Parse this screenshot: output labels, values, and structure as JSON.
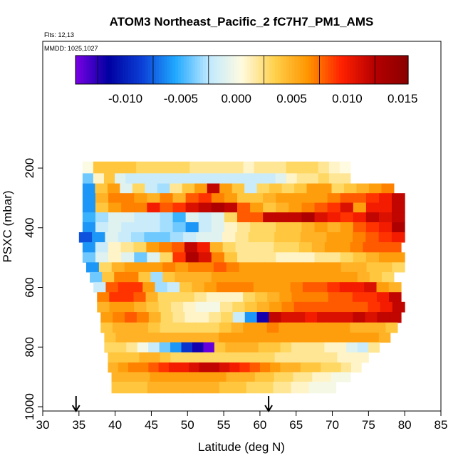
{
  "chart_data": {
    "type": "heatmap",
    "title": "ATOM3 Northeast_Pacific_2 fC7H7_PM1_AMS",
    "corner_labels": [
      "Flts: 12,13",
      "MMDD: 1025,1027"
    ],
    "xlabel": "Latitude (deg N)",
    "ylabel": "PSXC (mbar)",
    "xlim": [
      30,
      85
    ],
    "ylim": [
      1000,
      100
    ],
    "x_ticks": [
      "30",
      "35",
      "40",
      "45",
      "50",
      "55",
      "60",
      "65",
      "70",
      "75",
      "80",
      "85"
    ],
    "y_ticks": [
      "200",
      "400",
      "600",
      "800",
      "1000"
    ],
    "colorbar": {
      "min": -0.0145,
      "max": 0.0155,
      "tick_labels": [
        "-0.010",
        "-0.005",
        "0.000",
        "0.005",
        "0.010",
        "0.015"
      ],
      "tick_values": [
        -0.01,
        -0.005,
        0.0,
        0.005,
        0.01,
        0.015
      ],
      "colors": [
        "#7a00e6",
        "#0000a0",
        "#0b3fd6",
        "#1fa8ff",
        "#bfe9ff",
        "#fffbe0",
        "#ffd04a",
        "#ff9400",
        "#ff2000",
        "#b50000",
        "#8a0000"
      ]
    },
    "markers": {
      "arrow_latitudes": [
        34.6,
        61.2
      ]
    },
    "rows": [
      {
        "p": 200,
        "lat0": 35.5,
        "lat1": 72.5,
        "v": [
          0.0003,
          0.004,
          0.004,
          0.004,
          0.004,
          0.003,
          0.003,
          0.003,
          0.003,
          0.003,
          0.002,
          0.002,
          0.002,
          0.002,
          0.002,
          0.001,
          0.002,
          0.002,
          0.002,
          0.003,
          0.003,
          0.003,
          0.002,
          0.001,
          0.0005
        ]
      },
      {
        "p": 235,
        "lat0": 35.5,
        "lat1": 72.5,
        "v": [
          -0.004,
          0.001,
          0.004,
          -0.001,
          -0.002,
          -0.002,
          -0.002,
          -0.002,
          -0.002,
          -0.002,
          -0.002,
          -0.002,
          -0.002,
          -0.002,
          -0.002,
          -0.002,
          -0.002,
          -0.002,
          -0.001,
          0.001,
          0.002,
          0.002,
          0.003,
          0.002,
          0.002
        ]
      },
      {
        "p": 268,
        "lat0": 35.5,
        "lat1": 78.5,
        "v": [
          -0.006,
          0.004,
          0.006,
          -0.001,
          0.003,
          -0.002,
          -0.003,
          0.002,
          0.004,
          0.006,
          0.012,
          0.006,
          0.004,
          -0.002,
          0.003,
          0.004,
          0.003,
          0.004,
          0.006,
          0.006,
          0.003,
          0.004,
          0.005,
          0.006,
          0.007
        ]
      },
      {
        "p": 300,
        "lat0": 35.5,
        "lat1": 80,
        "v": [
          -0.006,
          0.005,
          0.007,
          0.007,
          0.006,
          0.005,
          0.007,
          0.005,
          0.008,
          0.009,
          0.007,
          0.006,
          0.004,
          0.004,
          0.005,
          0.006,
          0.006,
          0.006,
          0.006,
          0.007,
          0.008,
          0.008,
          0.009,
          0.01,
          0.012
        ]
      },
      {
        "p": 332,
        "lat0": 35.5,
        "lat1": 80,
        "v": [
          -0.006,
          0.004,
          0.006,
          0.007,
          0.007,
          0.01,
          0.008,
          0.009,
          0.011,
          0.012,
          0.013,
          0.012,
          0.008,
          0.006,
          0.004,
          0.005,
          0.006,
          0.007,
          0.008,
          0.009,
          0.011,
          0.006,
          0.01,
          0.01,
          0.012
        ]
      },
      {
        "p": 365,
        "lat0": 35.5,
        "lat1": 80,
        "v": [
          -0.005,
          -0.003,
          -0.001,
          -0.001,
          -0.002,
          -0.002,
          -0.003,
          -0.005,
          -0.001,
          -0.002,
          -0.001,
          0.003,
          0.008,
          0.008,
          0.012,
          0.012,
          0.012,
          0.013,
          0.011,
          0.01,
          0.009,
          0.01,
          0.012,
          0.011,
          0.012
        ]
      },
      {
        "p": 398,
        "lat0": 35.5,
        "lat1": 80,
        "v": [
          -0.006,
          -0.002,
          -0.001,
          -0.002,
          -0.002,
          -0.002,
          -0.003,
          -0.004,
          -0.006,
          -0.002,
          -0.001,
          0.001,
          0.002,
          0.003,
          0.003,
          0.004,
          0.004,
          0.005,
          0.006,
          0.005,
          0.006,
          0.008,
          0.009,
          0.01,
          0.013
        ]
      },
      {
        "p": 432,
        "lat0": 35.0,
        "lat1": 80,
        "v": [
          -0.008,
          -0.006,
          -0.001,
          -0.002,
          -0.003,
          -0.004,
          -0.004,
          -0.003,
          -0.002,
          -0.001,
          -0.001,
          0.001,
          0.002,
          0.003,
          0.003,
          0.004,
          0.004,
          0.005,
          0.005,
          0.006,
          0.006,
          0.007,
          0.008,
          0.009,
          0.01
        ]
      },
      {
        "p": 465,
        "lat0": 35.5,
        "lat1": 79.5,
        "v": [
          -0.006,
          -0.002,
          0.001,
          0.002,
          0.003,
          0.006,
          0.007,
          0.008,
          0.012,
          0.01,
          0.005,
          0.003,
          0.002,
          0.002,
          0.002,
          0.003,
          0.003,
          0.004,
          0.005,
          0.006,
          0.006,
          0.007,
          0.008,
          0.008,
          0.008
        ]
      },
      {
        "p": 500,
        "lat0": 35.5,
        "lat1": 80,
        "v": [
          -0.004,
          -0.001,
          0.001,
          -0.001,
          -0.004,
          -0.001,
          0.003,
          0.009,
          0.013,
          0.011,
          0.007,
          0.004,
          0.002,
          0.002,
          0.002,
          0.001,
          0.001,
          0.001,
          0.002,
          0.002,
          0.003,
          0.004,
          0.005,
          0.006,
          0.006
        ]
      },
      {
        "p": 532,
        "lat0": 36.0,
        "lat1": 80,
        "v": [
          -0.006,
          0.003,
          0.005,
          0.006,
          0.006,
          0.006,
          0.007,
          0.006,
          0.007,
          0.007,
          0.008,
          0.007,
          0.006,
          0.006,
          0.006,
          0.006,
          0.006,
          0.006,
          0.006,
          0.006,
          0.005,
          0.005,
          0.004,
          0.004,
          0.003
        ]
      },
      {
        "p": 565,
        "lat0": 36.5,
        "lat1": 78.5,
        "v": [
          -0.004,
          0.004,
          0.007,
          0.007,
          0.004,
          -0.003,
          0.004,
          0.005,
          0.005,
          0.005,
          0.006,
          0.006,
          0.006,
          0.006,
          0.006,
          0.006,
          0.006,
          0.006,
          0.006,
          0.006,
          0.006,
          0.006,
          0.005,
          0.004,
          0.003
        ]
      },
      {
        "p": 600,
        "lat0": 37.0,
        "lat1": 79.5,
        "v": [
          -0.002,
          0.008,
          0.009,
          0.009,
          0.006,
          -0.003,
          -0.002,
          0.004,
          0.005,
          0.006,
          0.007,
          0.007,
          0.007,
          0.006,
          0.006,
          0.006,
          0.007,
          0.008,
          0.008,
          0.009,
          0.01,
          0.01,
          0.011,
          0.006,
          0.005
        ]
      },
      {
        "p": 632,
        "lat0": 37.5,
        "lat1": 79.5,
        "v": [
          0.007,
          0.009,
          0.009,
          0.008,
          0.005,
          0.003,
          0.003,
          0.003,
          0.002,
          0.001,
          0.001,
          0.001,
          0.003,
          0.004,
          0.005,
          0.006,
          0.007,
          0.007,
          0.007,
          0.008,
          0.008,
          0.009,
          0.009,
          0.01,
          0.012
        ]
      },
      {
        "p": 665,
        "lat0": 37.5,
        "lat1": 80,
        "v": [
          0.005,
          0.006,
          0.006,
          0.005,
          0.004,
          0.003,
          0.002,
          0.001,
          0.0,
          0.0,
          0.002,
          0.003,
          0.004,
          0.005,
          0.006,
          0.007,
          0.008,
          0.008,
          0.008,
          0.008,
          0.008,
          0.008,
          0.009,
          0.01,
          0.012
        ]
      },
      {
        "p": 700,
        "lat0": 38.0,
        "lat1": 79.5,
        "v": [
          0.006,
          0.007,
          0.008,
          0.007,
          0.005,
          0.003,
          0.002,
          0.001,
          0.001,
          0.002,
          0.003,
          -0.002,
          -0.006,
          -0.012,
          0.012,
          0.011,
          0.011,
          0.01,
          0.011,
          0.011,
          0.011,
          0.012,
          0.011,
          0.012,
          0.012
        ]
      },
      {
        "p": 735,
        "lat0": 38.0,
        "lat1": 79.0,
        "v": [
          0.004,
          0.005,
          0.005,
          0.005,
          0.004,
          0.003,
          0.003,
          0.003,
          0.003,
          0.003,
          0.004,
          0.005,
          0.006,
          0.006,
          0.007,
          0.006,
          0.006,
          0.006,
          0.006,
          0.006,
          0.006,
          0.005,
          0.005,
          0.005,
          0.004
        ]
      },
      {
        "p": 768,
        "lat0": 38.5,
        "lat1": 78.0,
        "v": [
          0.004,
          0.005,
          0.005,
          0.005,
          0.005,
          0.005,
          0.005,
          0.005,
          0.005,
          0.005,
          0.006,
          0.006,
          0.006,
          0.006,
          0.006,
          0.006,
          0.006,
          0.006,
          0.006,
          0.006,
          0.006,
          0.006,
          0.006,
          0.006,
          0.005
        ]
      },
      {
        "p": 800,
        "lat0": 38.5,
        "lat1": 76.5,
        "v": [
          0.003,
          0.003,
          0.002,
          0.0,
          -0.002,
          -0.004,
          -0.006,
          -0.009,
          -0.012,
          -0.014,
          0.004,
          0.005,
          0.005,
          0.005,
          0.004,
          0.004,
          0.003,
          0.002,
          0.002,
          0.002,
          0.001,
          0.001,
          -0.001,
          -0.002,
          0.002
        ]
      },
      {
        "p": 835,
        "lat0": 39.0,
        "lat1": 75.0,
        "v": [
          0.004,
          0.004,
          0.004,
          0.005,
          0.005,
          0.004,
          0.003,
          0.003,
          0.003,
          0.003,
          0.003,
          0.003,
          0.003,
          0.003,
          0.003,
          0.003,
          0.002,
          0.002,
          0.002,
          0.002,
          0.002,
          0.002,
          0.001,
          0.001,
          0.001
        ]
      },
      {
        "p": 868,
        "lat0": 39.0,
        "lat1": 74.0,
        "v": [
          0.005,
          0.006,
          0.007,
          0.007,
          0.008,
          0.009,
          0.01,
          0.01,
          0.011,
          0.012,
          0.012,
          0.011,
          0.01,
          0.009,
          0.008,
          0.007,
          0.006,
          0.005,
          0.005,
          0.004,
          0.004,
          0.003,
          0.003,
          0.002,
          0.001
        ]
      },
      {
        "p": 900,
        "lat0": 39.5,
        "lat1": 72.5,
        "v": [
          0.005,
          0.005,
          0.005,
          0.005,
          0.006,
          0.006,
          0.006,
          0.006,
          0.006,
          0.006,
          0.006,
          0.006,
          0.005,
          0.005,
          0.005,
          0.004,
          0.004,
          0.003,
          0.003,
          0.002,
          0.002,
          0.001,
          0.001,
          0.0,
          0.0
        ]
      },
      {
        "p": 932,
        "lat0": 39.5,
        "lat1": 70.5,
        "v": [
          0.004,
          0.004,
          0.004,
          0.004,
          0.005,
          0.005,
          0.005,
          0.005,
          0.005,
          0.005,
          0.005,
          0.005,
          0.004,
          0.004,
          0.004,
          0.003,
          0.003,
          0.003,
          0.002,
          0.002,
          0.001,
          0.001,
          0.0,
          0.0,
          0.0
        ]
      }
    ]
  }
}
